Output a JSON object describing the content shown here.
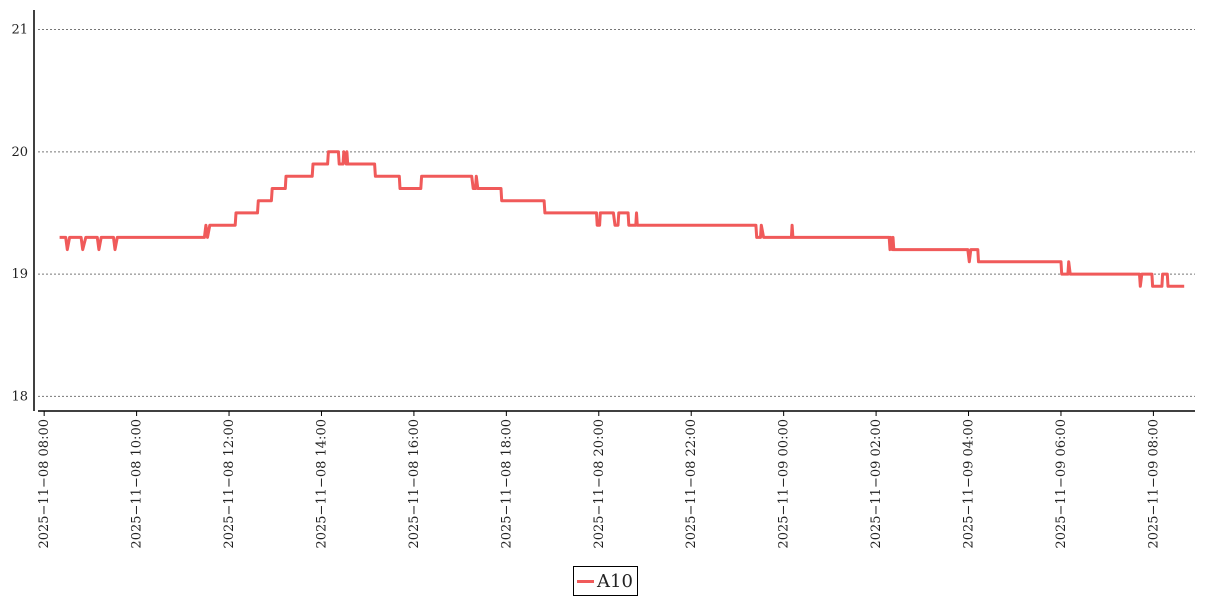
{
  "chart_data": {
    "type": "line",
    "xlabel": "",
    "ylabel": "",
    "ylim": [
      17.88,
      21.16
    ],
    "yticks": [
      18,
      19,
      20,
      21
    ],
    "xticks": [
      "2025-11-08 08:00",
      "2025-11-08 10:00",
      "2025-11-08 12:00",
      "2025-11-08 14:00",
      "2025-11-08 16:00",
      "2025-11-08 18:00",
      "2025-11-08 20:00",
      "2025-11-08 22:00",
      "2025-11-09 00:00",
      "2025-11-09 02:00",
      "2025-11-09 04:00",
      "2025-11-09 06:00",
      "2025-11-09 08:00"
    ],
    "xlim": [
      "2025-11-08 07:52",
      "2025-11-09 08:54"
    ],
    "grid": "horizontal-dotted",
    "legend_position": "bottom-center",
    "series": [
      {
        "name": "A10",
        "color": "#f05a5a",
        "points": [
          [
            "2025-11-08 08:20",
            19.3
          ],
          [
            "2025-11-08 08:28",
            19.3
          ],
          [
            "2025-11-08 08:30",
            19.2
          ],
          [
            "2025-11-08 08:33",
            19.3
          ],
          [
            "2025-11-08 08:48",
            19.3
          ],
          [
            "2025-11-08 08:50",
            19.2
          ],
          [
            "2025-11-08 08:54",
            19.3
          ],
          [
            "2025-11-08 09:09",
            19.3
          ],
          [
            "2025-11-08 09:11",
            19.2
          ],
          [
            "2025-11-08 09:14",
            19.3
          ],
          [
            "2025-11-08 09:30",
            19.3
          ],
          [
            "2025-11-08 09:32",
            19.2
          ],
          [
            "2025-11-08 09:35",
            19.3
          ],
          [
            "2025-11-08 11:28",
            19.3
          ],
          [
            "2025-11-08 11:30",
            19.4
          ],
          [
            "2025-11-08 11:32",
            19.3
          ],
          [
            "2025-11-08 11:35",
            19.4
          ],
          [
            "2025-11-08 12:08",
            19.4
          ],
          [
            "2025-11-08 12:09",
            19.5
          ],
          [
            "2025-11-08 12:37",
            19.5
          ],
          [
            "2025-11-08 12:38",
            19.6
          ],
          [
            "2025-11-08 12:55",
            19.6
          ],
          [
            "2025-11-08 12:56",
            19.7
          ],
          [
            "2025-11-08 13:13",
            19.7
          ],
          [
            "2025-11-08 13:14",
            19.8
          ],
          [
            "2025-11-08 13:48",
            19.8
          ],
          [
            "2025-11-08 13:49",
            19.9
          ],
          [
            "2025-11-08 14:08",
            19.9
          ],
          [
            "2025-11-08 14:09",
            20.0
          ],
          [
            "2025-11-08 14:22",
            20.0
          ],
          [
            "2025-11-08 14:23",
            19.9
          ],
          [
            "2025-11-08 14:28",
            19.9
          ],
          [
            "2025-11-08 14:29",
            20.0
          ],
          [
            "2025-11-08 14:32",
            19.9
          ],
          [
            "2025-11-08 14:33",
            20.0
          ],
          [
            "2025-11-08 14:34",
            19.9
          ],
          [
            "2025-11-08 15:09",
            19.9
          ],
          [
            "2025-11-08 15:10",
            19.8
          ],
          [
            "2025-11-08 15:41",
            19.8
          ],
          [
            "2025-11-08 15:42",
            19.7
          ],
          [
            "2025-11-08 16:09",
            19.7
          ],
          [
            "2025-11-08 16:10",
            19.8
          ],
          [
            "2025-11-08 17:15",
            19.8
          ],
          [
            "2025-11-08 17:17",
            19.7
          ],
          [
            "2025-11-08 17:20",
            19.7
          ],
          [
            "2025-11-08 17:21",
            19.8
          ],
          [
            "2025-11-08 17:23",
            19.7
          ],
          [
            "2025-11-08 17:53",
            19.7
          ],
          [
            "2025-11-08 17:54",
            19.6
          ],
          [
            "2025-11-08 18:49",
            19.6
          ],
          [
            "2025-11-08 18:50",
            19.5
          ],
          [
            "2025-11-08 19:57",
            19.5
          ],
          [
            "2025-11-08 19:58",
            19.4
          ],
          [
            "2025-11-08 20:01",
            19.4
          ],
          [
            "2025-11-08 20:02",
            19.5
          ],
          [
            "2025-11-08 20:19",
            19.5
          ],
          [
            "2025-11-08 20:21",
            19.4
          ],
          [
            "2025-11-08 20:25",
            19.4
          ],
          [
            "2025-11-08 20:26",
            19.5
          ],
          [
            "2025-11-08 20:38",
            19.5
          ],
          [
            "2025-11-08 20:39",
            19.4
          ],
          [
            "2025-11-08 20:48",
            19.4
          ],
          [
            "2025-11-08 20:49",
            19.5
          ],
          [
            "2025-11-08 20:50",
            19.4
          ],
          [
            "2025-11-08 23:24",
            19.4
          ],
          [
            "2025-11-08 23:25",
            19.3
          ],
          [
            "2025-11-08 23:30",
            19.3
          ],
          [
            "2025-11-08 23:31",
            19.4
          ],
          [
            "2025-11-08 23:34",
            19.3
          ],
          [
            "2025-11-09 00:10",
            19.3
          ],
          [
            "2025-11-09 00:11",
            19.4
          ],
          [
            "2025-11-09 00:12",
            19.3
          ],
          [
            "2025-11-09 02:17",
            19.3
          ],
          [
            "2025-11-09 02:18",
            19.2
          ],
          [
            "2025-11-09 02:19",
            19.3
          ],
          [
            "2025-11-09 02:21",
            19.2
          ],
          [
            "2025-11-09 02:22",
            19.3
          ],
          [
            "2025-11-09 02:23",
            19.2
          ],
          [
            "2025-11-09 03:59",
            19.2
          ],
          [
            "2025-11-09 04:01",
            19.1
          ],
          [
            "2025-11-09 04:03",
            19.2
          ],
          [
            "2025-11-09 04:12",
            19.2
          ],
          [
            "2025-11-09 04:13",
            19.1
          ],
          [
            "2025-11-09 06:00",
            19.1
          ],
          [
            "2025-11-09 06:01",
            19.0
          ],
          [
            "2025-11-09 06:09",
            19.0
          ],
          [
            "2025-11-09 06:10",
            19.1
          ],
          [
            "2025-11-09 06:12",
            19.0
          ],
          [
            "2025-11-09 07:42",
            19.0
          ],
          [
            "2025-11-09 07:43",
            18.9
          ],
          [
            "2025-11-09 07:45",
            19.0
          ],
          [
            "2025-11-09 07:58",
            19.0
          ],
          [
            "2025-11-09 07:59",
            18.9
          ],
          [
            "2025-11-09 08:11",
            18.9
          ],
          [
            "2025-11-09 08:12",
            19.0
          ],
          [
            "2025-11-09 08:18",
            19.0
          ],
          [
            "2025-11-09 08:19",
            18.9
          ],
          [
            "2025-11-09 08:40",
            18.9
          ]
        ]
      }
    ]
  }
}
